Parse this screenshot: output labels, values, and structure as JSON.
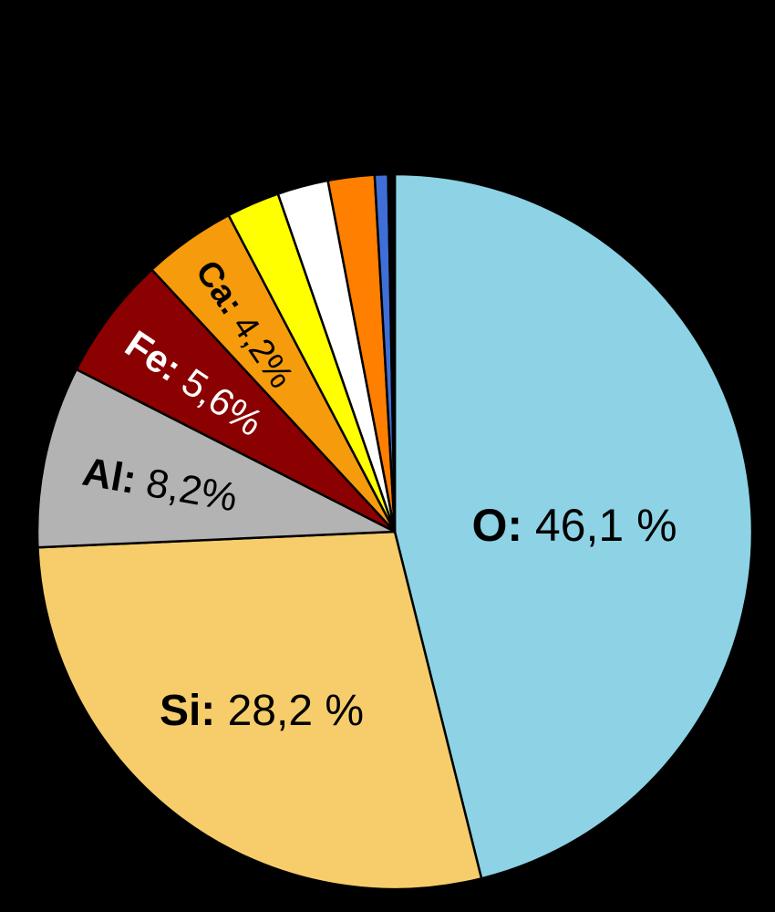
{
  "chart_data": {
    "type": "pie",
    "start_angle_deg": 0,
    "direction": "clockwise",
    "slices": [
      {
        "label": "O",
        "value": 46.1,
        "color": "#8DD3E5",
        "label_symbol": "O:",
        "label_value": "46,1 %",
        "label_color": "#000000",
        "label_rotation": 0
      },
      {
        "label": "Si",
        "value": 28.2,
        "color": "#F7CD6C",
        "label_symbol": "Si:",
        "label_value": "28,2 %",
        "label_color": "#000000",
        "label_rotation": 0
      },
      {
        "label": "Al",
        "value": 8.2,
        "color": "#B3B3B3",
        "label_symbol": "Al:",
        "label_value": "8,2%",
        "label_color": "#000000",
        "label_rotation": 10
      },
      {
        "label": "Fe",
        "value": 5.6,
        "color": "#8B0000",
        "label_symbol": "Fe:",
        "label_value": "5,6%",
        "label_color": "#FFFFFF",
        "label_rotation": 34
      },
      {
        "label": "Ca",
        "value": 4.2,
        "color": "#F59B0C",
        "label_symbol": "Ca:",
        "label_value": "4,2%",
        "label_color": "#000000",
        "label_rotation": 56
      },
      {
        "label": "",
        "value": 2.4,
        "color": "#FFFF00"
      },
      {
        "label": "",
        "value": 2.3,
        "color": "#FFFFFF"
      },
      {
        "label": "",
        "value": 2.1,
        "color": "#FF7F00"
      },
      {
        "label": "",
        "value": 0.6,
        "color": "#3F6FD6"
      },
      {
        "label": "",
        "value": 0.3,
        "color": "#000000"
      }
    ]
  }
}
